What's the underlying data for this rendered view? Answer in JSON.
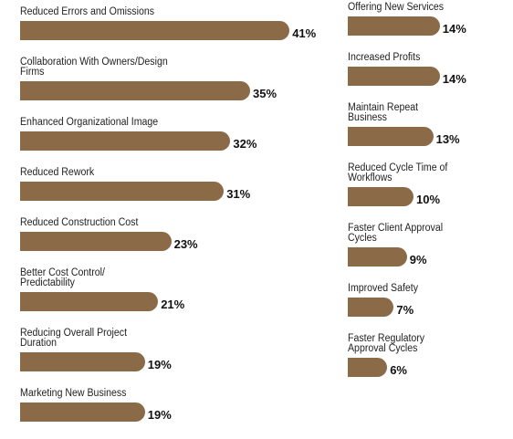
{
  "chart_data": [
    {
      "type": "bar",
      "color": "#8b6a47",
      "categories": [
        "Reduced Errors and Omissions",
        "Collaboration With Owners/Design Firms",
        "Enhanced Organizational Image",
        "Reduced Rework",
        "Reduced Construction Cost",
        "Better Cost Control/\nPredictability",
        "Reducing Overall Project\nDuration",
        "Marketing New Business"
      ],
      "values": [
        41,
        35,
        32,
        31,
        23,
        21,
        19,
        19
      ],
      "value_labels": [
        "41%",
        "35%",
        "32%",
        "31%",
        "23%",
        "21%",
        "19%",
        "19%"
      ]
    },
    {
      "type": "bar",
      "color": "#8b6a47",
      "categories": [
        "Offering New Services",
        "Increased Profits",
        "Maintain Repeat\nBusiness",
        "Reduced Cycle Time of\nWorkflows",
        "Faster Client Approval\nCycles",
        "Improved Safety",
        "Faster Regulatory\nApproval Cycles"
      ],
      "values": [
        14,
        14,
        13,
        10,
        9,
        7,
        6
      ],
      "value_labels": [
        "14%",
        "14%",
        "13%",
        "10%",
        "9%",
        "7%",
        "6%"
      ]
    }
  ]
}
